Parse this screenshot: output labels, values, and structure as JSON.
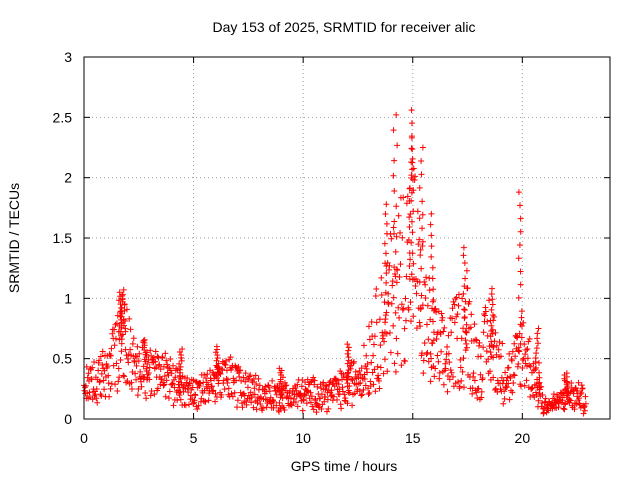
{
  "chart_data": {
    "type": "scatter",
    "title": "Day 153 of 2025, SRMTID for receiver alic",
    "xlabel": "GPS time / hours",
    "ylabel": "SRMTID / TECUs",
    "xlim": [
      0,
      24
    ],
    "ylim": [
      0,
      3
    ],
    "x_ticks": [
      0,
      5,
      10,
      15,
      20
    ],
    "x_tick_labels": [
      "0",
      "5",
      "10",
      "15",
      "20"
    ],
    "y_ticks": [
      0,
      0.5,
      1,
      1.5,
      2,
      2.5,
      3
    ],
    "y_tick_labels": [
      "0",
      "0.5",
      "1",
      "1.5",
      "2",
      "2.5",
      "3"
    ],
    "grid": true,
    "marker": "+",
    "marker_color": "#ff0000",
    "series": [
      {
        "name": "SRMTID",
        "profile": [
          {
            "x": 0.0,
            "y": 0.25
          },
          {
            "x": 0.5,
            "y": 0.3
          },
          {
            "x": 1.0,
            "y": 0.35
          },
          {
            "x": 1.5,
            "y": 0.55
          },
          {
            "x": 1.8,
            "y": 0.7
          },
          {
            "x": 2.2,
            "y": 0.45
          },
          {
            "x": 3.0,
            "y": 0.38
          },
          {
            "x": 4.0,
            "y": 0.3
          },
          {
            "x": 4.5,
            "y": 0.25
          },
          {
            "x": 5.0,
            "y": 0.2
          },
          {
            "x": 6.0,
            "y": 0.28
          },
          {
            "x": 6.5,
            "y": 0.35
          },
          {
            "x": 7.0,
            "y": 0.28
          },
          {
            "x": 8.0,
            "y": 0.2
          },
          {
            "x": 9.0,
            "y": 0.18
          },
          {
            "x": 10.0,
            "y": 0.2
          },
          {
            "x": 11.0,
            "y": 0.2
          },
          {
            "x": 12.0,
            "y": 0.25
          },
          {
            "x": 13.0,
            "y": 0.45
          },
          {
            "x": 13.5,
            "y": 0.6
          },
          {
            "x": 14.0,
            "y": 0.8
          },
          {
            "x": 14.5,
            "y": 1.0
          },
          {
            "x": 15.0,
            "y": 1.2
          },
          {
            "x": 15.5,
            "y": 0.7
          },
          {
            "x": 16.0,
            "y": 0.5
          },
          {
            "x": 16.5,
            "y": 0.4
          },
          {
            "x": 17.0,
            "y": 0.55
          },
          {
            "x": 17.5,
            "y": 0.6
          },
          {
            "x": 18.0,
            "y": 0.35
          },
          {
            "x": 18.5,
            "y": 0.55
          },
          {
            "x": 19.0,
            "y": 0.35
          },
          {
            "x": 19.5,
            "y": 0.28
          },
          {
            "x": 20.0,
            "y": 0.5
          },
          {
            "x": 20.5,
            "y": 0.3
          },
          {
            "x": 21.0,
            "y": 0.1
          },
          {
            "x": 21.5,
            "y": 0.12
          },
          {
            "x": 22.0,
            "y": 0.18
          },
          {
            "x": 22.5,
            "y": 0.18
          },
          {
            "x": 22.9,
            "y": 0.15
          }
        ],
        "peaks": [
          {
            "x": 1.65,
            "y": 1.05
          },
          {
            "x": 1.8,
            "y": 1.02
          },
          {
            "x": 2.8,
            "y": 0.65
          },
          {
            "x": 4.4,
            "y": 0.58
          },
          {
            "x": 6.1,
            "y": 0.6
          },
          {
            "x": 9.0,
            "y": 0.42
          },
          {
            "x": 12.1,
            "y": 0.62
          },
          {
            "x": 13.8,
            "y": 1.78
          },
          {
            "x": 14.2,
            "y": 2.52
          },
          {
            "x": 14.9,
            "y": 2.56
          },
          {
            "x": 15.0,
            "y": 2.33
          },
          {
            "x": 15.4,
            "y": 2.25
          },
          {
            "x": 15.9,
            "y": 1.7
          },
          {
            "x": 17.4,
            "y": 1.42
          },
          {
            "x": 18.6,
            "y": 1.08
          },
          {
            "x": 19.9,
            "y": 1.88
          },
          {
            "x": 20.7,
            "y": 0.75
          },
          {
            "x": 22.0,
            "y": 0.38
          }
        ],
        "x_range": [
          0,
          22.9
        ]
      }
    ]
  }
}
